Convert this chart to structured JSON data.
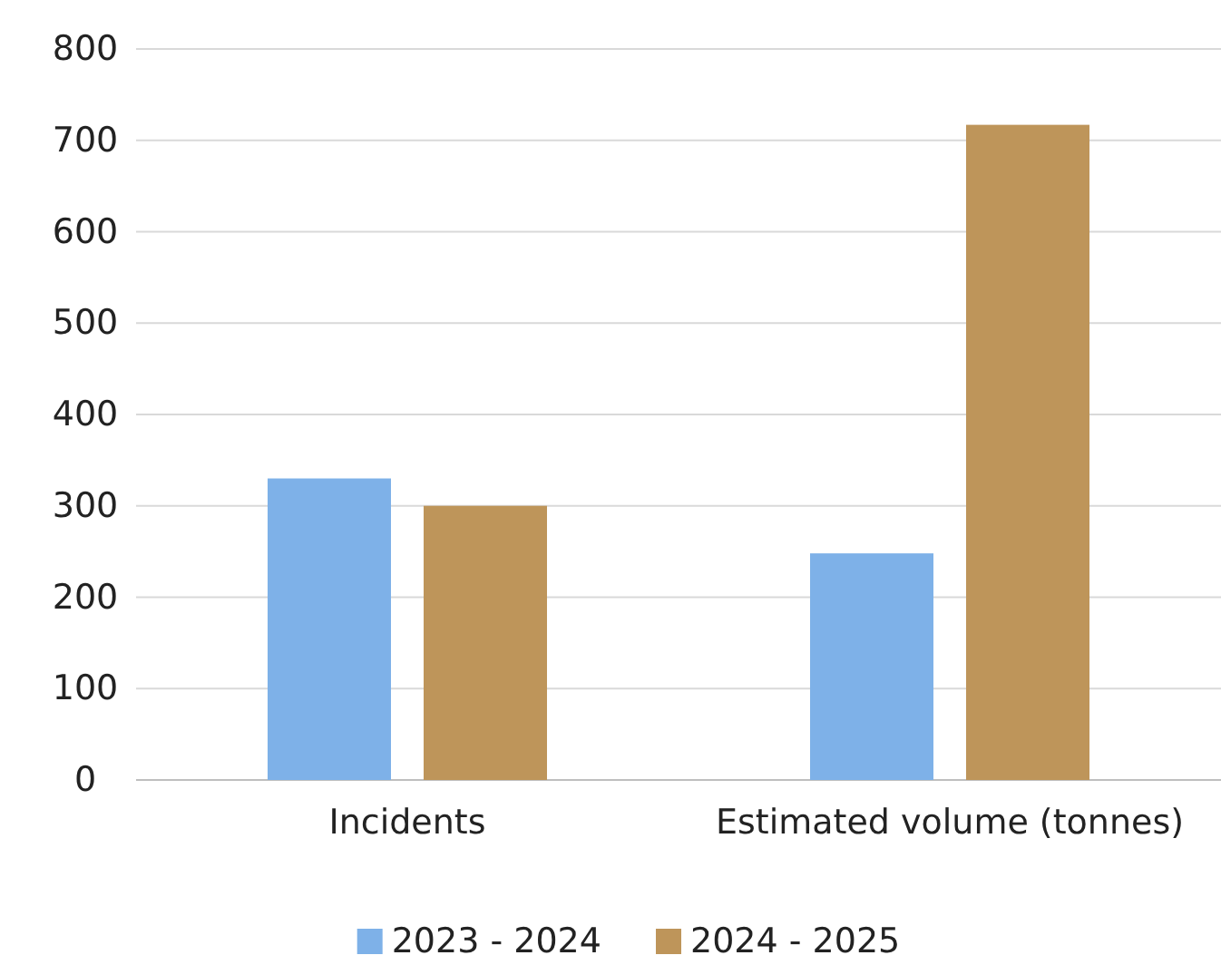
{
  "chart_data": {
    "type": "bar",
    "categories": [
      "Incidents",
      "Estimated volume (tonnes)"
    ],
    "series": [
      {
        "name": "2023 - 2024",
        "color": "#7eb1e8",
        "values": [
          330,
          248
        ]
      },
      {
        "name": "2024 - 2025",
        "color": "#be955a",
        "values": [
          300,
          717
        ]
      }
    ],
    "ylim": [
      0,
      800
    ],
    "yticks": [
      0,
      100,
      200,
      300,
      400,
      500,
      600,
      700,
      800
    ],
    "grid": "y",
    "legend": "bottom"
  }
}
